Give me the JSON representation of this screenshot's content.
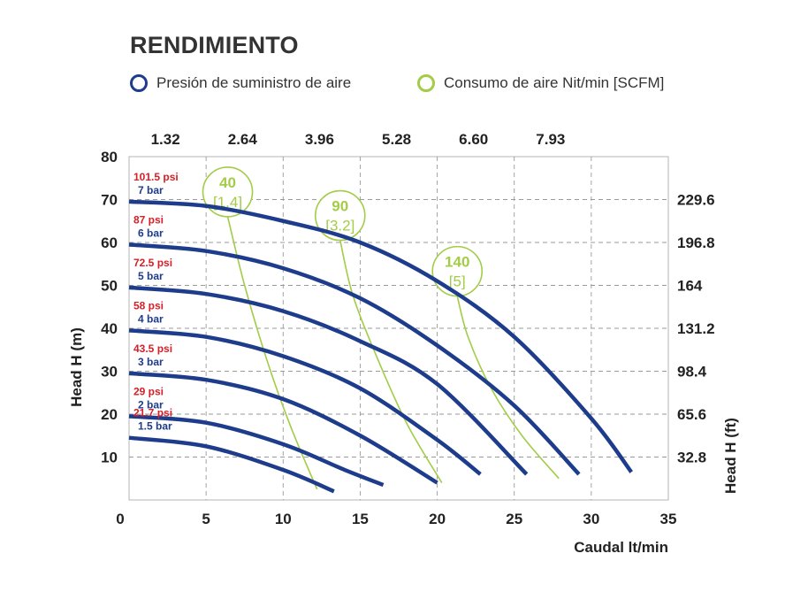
{
  "title": "RENDIMIENTO",
  "legend": {
    "pressure_label": "Presión de suministro de aire",
    "consumption_label": "Consumo de aire Nit/min [SCFM]"
  },
  "colors": {
    "pressure": "#1e3c8c",
    "consumption": "#a3cc47",
    "psi_text": "#d42028",
    "bar_text": "#1e3c8c",
    "grid": "#9a9a9a"
  },
  "chart_data": {
    "type": "line",
    "title": "RENDIMIENTO",
    "xlabel": "Caudal lt/min",
    "ylabel": "Head H (m)",
    "ylabel_right": "Head H (ft)",
    "xlim": [
      0,
      35
    ],
    "ylim": [
      0,
      80
    ],
    "x_ticks": [
      "0",
      "5",
      "10",
      "15",
      "20",
      "25",
      "30",
      "35"
    ],
    "y_ticks": [
      "10",
      "20",
      "30",
      "40",
      "50",
      "60",
      "70",
      "80"
    ],
    "top_ticks": [
      "1.32",
      "2.64",
      "3.96",
      "5.28",
      "6.60",
      "7.93"
    ],
    "right_ticks": [
      "32.8",
      "65.6",
      "98.4",
      "131.2",
      "164",
      "196.8",
      "229.6"
    ],
    "series": [
      {
        "name": "7 bar",
        "psi": "101.5 psi",
        "bar": "7 bar",
        "x": [
          0,
          5,
          10,
          15,
          20,
          25,
          30,
          32.6
        ],
        "y": [
          69.5,
          68.5,
          65,
          60,
          51,
          38,
          19,
          6.5
        ]
      },
      {
        "name": "6 bar",
        "psi": "87 psi",
        "bar": "6 bar",
        "x": [
          0,
          5,
          10,
          15,
          20,
          25,
          29.2
        ],
        "y": [
          59.5,
          58,
          54,
          47,
          36,
          22,
          6
        ]
      },
      {
        "name": "5 bar",
        "psi": "72.5 psi",
        "bar": "5 bar",
        "x": [
          0,
          5,
          10,
          15,
          20,
          25.8
        ],
        "y": [
          49.5,
          48,
          44,
          37,
          27,
          6
        ]
      },
      {
        "name": "4 bar",
        "psi": "58 psi",
        "bar": "4 bar",
        "x": [
          0,
          5,
          10,
          15,
          20,
          22.8
        ],
        "y": [
          39.5,
          38,
          33.5,
          26,
          14,
          6
        ]
      },
      {
        "name": "3 bar",
        "psi": "43.5 psi",
        "bar": "3 bar",
        "x": [
          0,
          5,
          10,
          15,
          20
        ],
        "y": [
          29.5,
          28,
          23.5,
          15,
          4
        ]
      },
      {
        "name": "2 bar",
        "psi": "29 psi",
        "bar": "2 bar",
        "x": [
          0,
          5,
          10,
          14,
          16.5
        ],
        "y": [
          19.5,
          18,
          13,
          7,
          3.5
        ]
      },
      {
        "name": "1.5 bar",
        "psi": "21.7 psi",
        "bar": "1.5 bar",
        "x": [
          0,
          5,
          10,
          13.3
        ],
        "y": [
          14.5,
          12.5,
          7,
          2
        ]
      }
    ],
    "consumption_lines": [
      {
        "label": "40",
        "scfm": "[1.4]",
        "x": [
          6.4,
          7.5,
          9,
          10.5,
          12.2
        ],
        "y": [
          66,
          50,
          32,
          17,
          2.5
        ]
      },
      {
        "label": "90",
        "scfm": "[3.2]",
        "x": [
          13.7,
          14.5,
          16,
          18,
          20.3
        ],
        "y": [
          60.5,
          48,
          34,
          18,
          4
        ]
      },
      {
        "label": "140",
        "scfm": "[5]",
        "x": [
          21.3,
          22,
          23.5,
          25.5,
          27.9
        ],
        "y": [
          47.5,
          38,
          26,
          15,
          5
        ]
      }
    ]
  }
}
